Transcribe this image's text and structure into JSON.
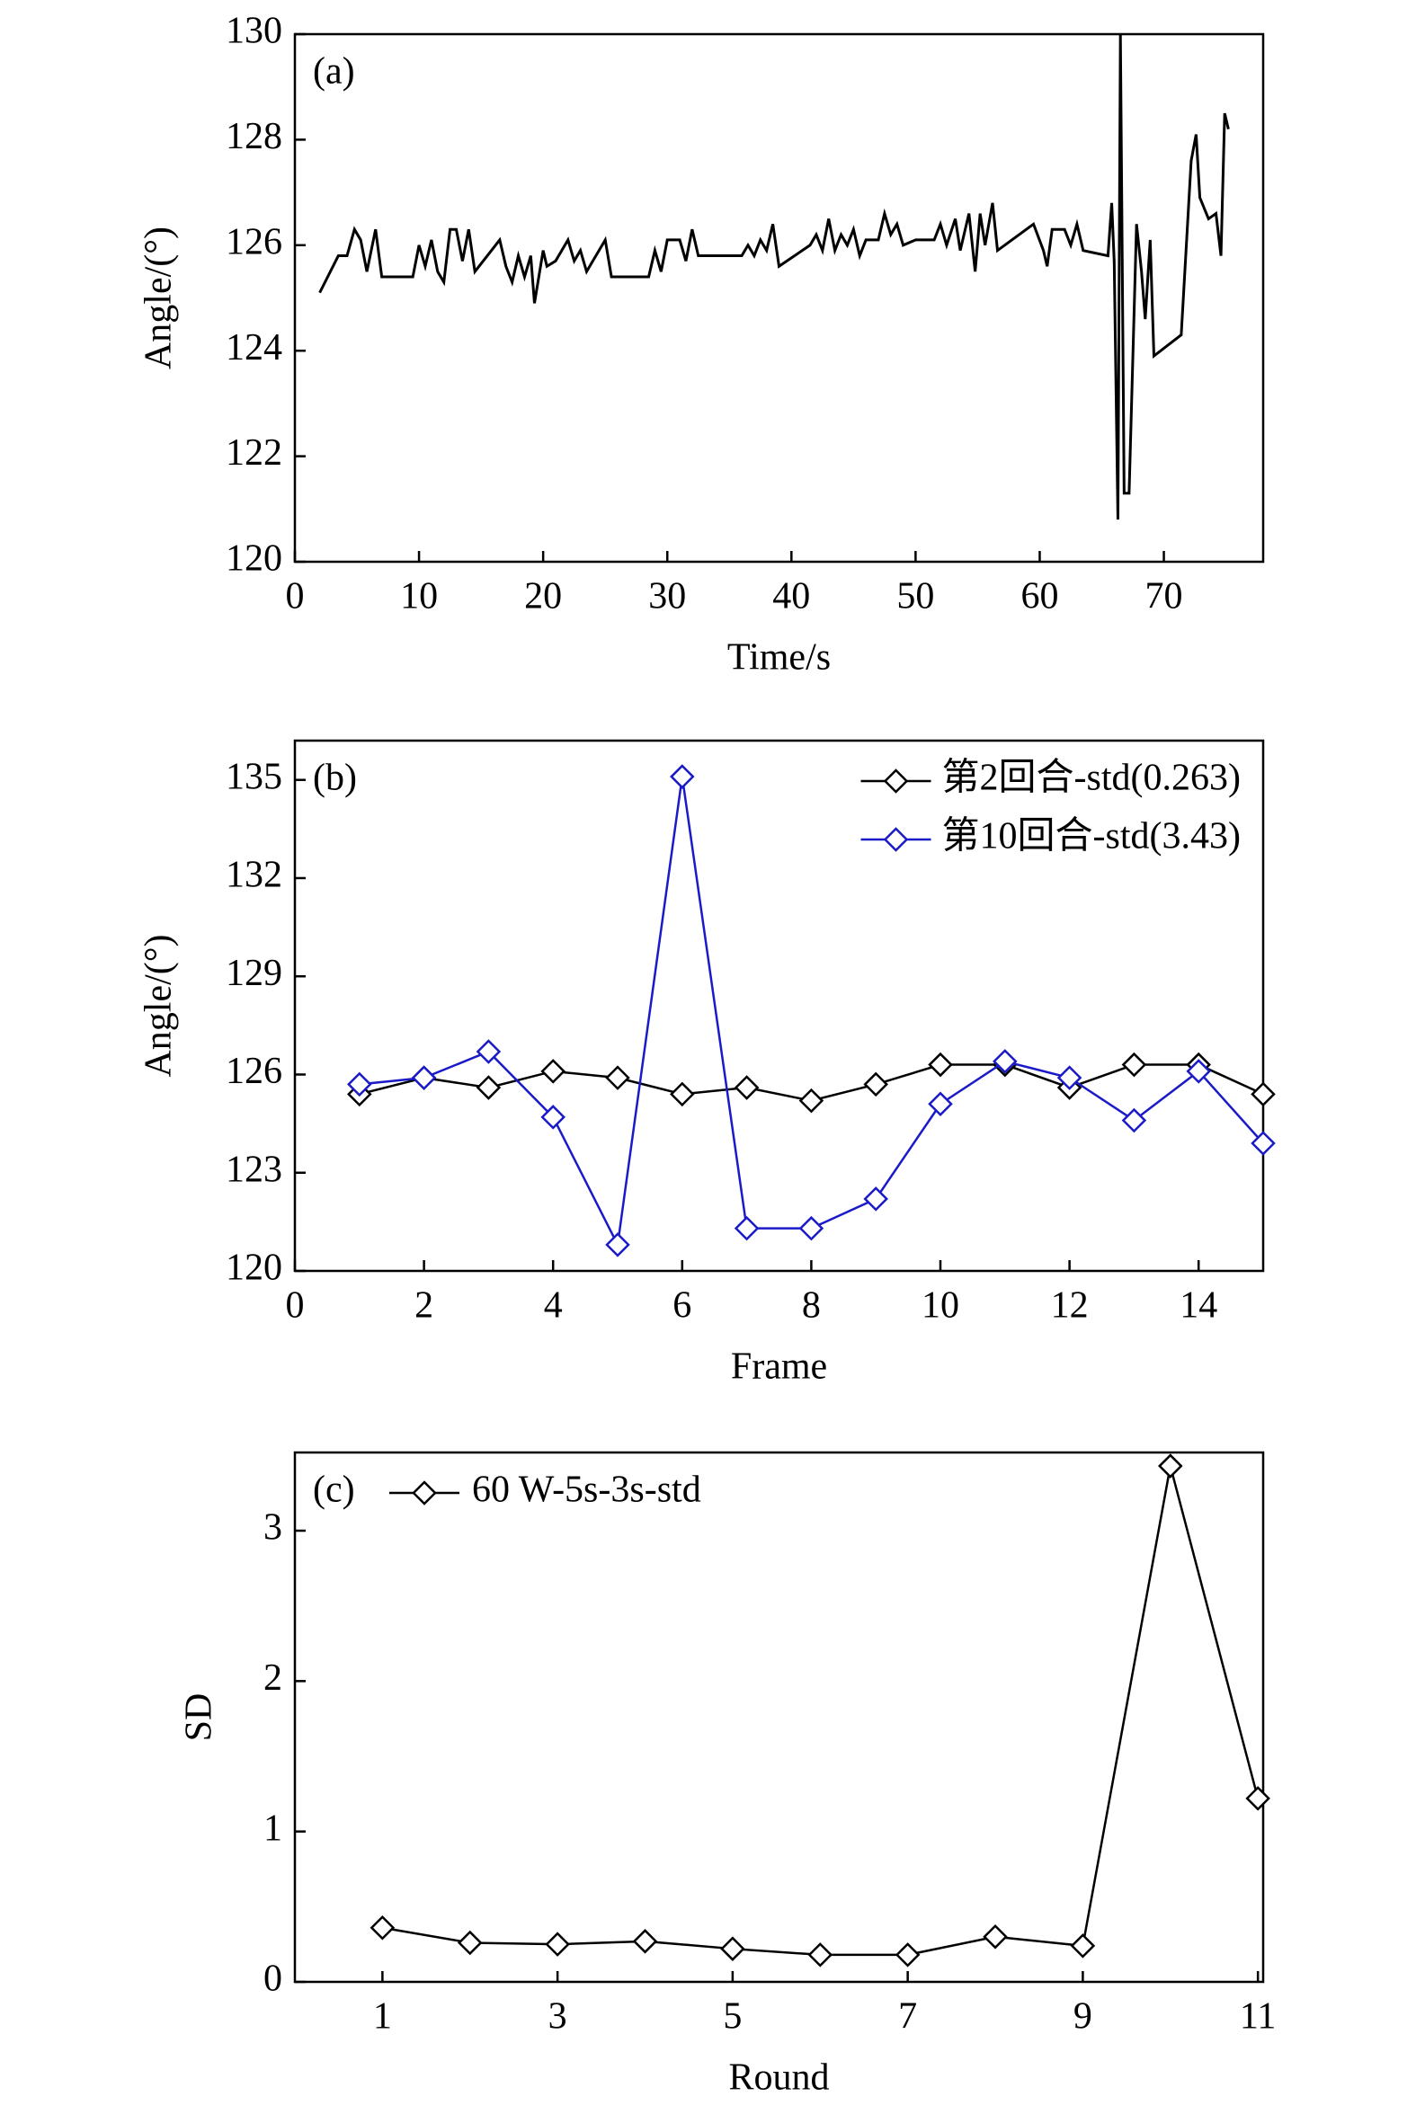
{
  "chart_data": [
    {
      "type": "line",
      "annotation": "(a)",
      "x_label": "Time/s",
      "y_label": "Angle/(°)",
      "color": "#000000",
      "x": [
        2,
        3.5,
        4.2,
        4.8,
        5.3,
        5.8,
        6.5,
        7,
        9.5,
        10,
        10.5,
        11,
        11.5,
        12,
        12.5,
        13,
        13.5,
        14,
        14.5,
        16.5,
        17,
        17.5,
        18,
        18.5,
        19,
        19.3,
        20,
        20.3,
        21,
        22,
        22.5,
        23,
        23.5,
        24,
        25,
        25.5,
        28.5,
        29,
        29.5,
        30,
        31,
        31.5,
        32,
        32.5,
        36,
        36.5,
        37,
        37.5,
        38,
        38.5,
        39,
        41.5,
        42,
        42.5,
        43,
        43.5,
        44,
        44.5,
        45,
        45.5,
        46,
        47,
        47.5,
        48,
        48.5,
        49,
        50,
        51.5,
        52,
        52.5,
        53.2,
        53.6,
        54.3,
        54.8,
        55.2,
        55.6,
        56.2,
        56.6,
        59.5,
        60.3,
        60.6,
        61,
        62,
        62.5,
        63,
        63.5,
        65.5,
        65.8,
        66,
        66.3,
        66.5,
        66.8,
        67.2,
        67.8,
        68.2,
        68.5,
        68.9,
        69.2,
        71.4,
        72.2,
        72.6,
        72.9,
        73.6,
        74.2,
        74.6,
        74.9,
        75.2
      ],
      "values": [
        125.1,
        125.8,
        125.8,
        126.3,
        126.1,
        125.5,
        126.3,
        125.4,
        125.4,
        126.0,
        125.6,
        126.1,
        125.5,
        125.3,
        126.3,
        126.3,
        125.7,
        126.3,
        125.5,
        126.1,
        125.6,
        125.3,
        125.8,
        125.4,
        125.8,
        124.9,
        125.9,
        125.6,
        125.7,
        126.1,
        125.7,
        125.9,
        125.5,
        125.7,
        126.1,
        125.4,
        125.4,
        125.9,
        125.5,
        126.1,
        126.1,
        125.7,
        126.3,
        125.8,
        125.8,
        126.0,
        125.8,
        126.1,
        125.9,
        126.4,
        125.6,
        126.0,
        126.2,
        125.9,
        126.5,
        125.9,
        126.2,
        126.0,
        126.3,
        125.8,
        126.1,
        126.1,
        126.6,
        126.2,
        126.4,
        126.0,
        126.1,
        126.1,
        126.4,
        126.0,
        126.5,
        125.9,
        126.6,
        125.5,
        126.6,
        126.0,
        126.8,
        125.9,
        126.4,
        125.9,
        125.6,
        126.3,
        126.3,
        126.0,
        126.4,
        125.9,
        125.8,
        126.8,
        125.7,
        120.8,
        130.0,
        121.3,
        121.3,
        126.4,
        125.5,
        124.6,
        126.1,
        123.9,
        124.3,
        127.6,
        128.1,
        126.9,
        126.5,
        126.6,
        125.8,
        128.5,
        128.2
      ],
      "xlim": [
        0,
        78
      ],
      "xticks": [
        0,
        10,
        20,
        30,
        40,
        50,
        60,
        70
      ],
      "ylim": [
        120,
        130
      ],
      "yticks": [
        120,
        122,
        124,
        126,
        128,
        130
      ]
    },
    {
      "type": "line",
      "annotation": "(b)",
      "x_label": "Frame",
      "y_label": "Angle/(°)",
      "marker": "diamond",
      "legend": "upper right",
      "x": [
        1,
        2,
        3,
        4,
        5,
        6,
        7,
        8,
        9,
        10,
        11,
        12,
        13,
        14,
        15
      ],
      "series": [
        {
          "name": "第2回合-std(0.263)",
          "color": "#000000",
          "values": [
            125.4,
            125.9,
            125.6,
            126.1,
            125.9,
            125.4,
            125.6,
            125.2,
            125.7,
            126.3,
            126.3,
            125.6,
            126.3,
            126.3,
            125.4
          ]
        },
        {
          "name": "第10回合-std(3.43)",
          "color": "#1a1ac8",
          "values": [
            125.7,
            125.9,
            126.7,
            124.7,
            120.8,
            135.1,
            121.3,
            121.3,
            122.2,
            125.1,
            126.4,
            125.9,
            124.6,
            126.1,
            123.9
          ]
        }
      ],
      "xlim": [
        0,
        15
      ],
      "xticks": [
        0,
        2,
        4,
        6,
        8,
        10,
        12,
        14
      ],
      "ylim": [
        120,
        136.2
      ],
      "yticks": [
        120,
        123,
        126,
        129,
        132,
        135
      ]
    },
    {
      "type": "line",
      "annotation": "(c)",
      "x_label": "Round",
      "y_label": "SD",
      "marker": "diamond",
      "legend": "upper left",
      "x": [
        1,
        2,
        3,
        4,
        5,
        6,
        7,
        8,
        9,
        10,
        11
      ],
      "series": [
        {
          "name": "60 W-5s-3s-std",
          "color": "#000000",
          "values": [
            0.36,
            0.26,
            0.25,
            0.27,
            0.22,
            0.18,
            0.18,
            0.3,
            0.24,
            3.43,
            1.22
          ]
        }
      ],
      "xlim": [
        0,
        11.06
      ],
      "xticks": [
        1,
        3,
        5,
        7,
        9,
        11
      ],
      "ylim": [
        0,
        3.52
      ],
      "yticks": [
        0,
        1,
        2,
        3
      ]
    }
  ]
}
